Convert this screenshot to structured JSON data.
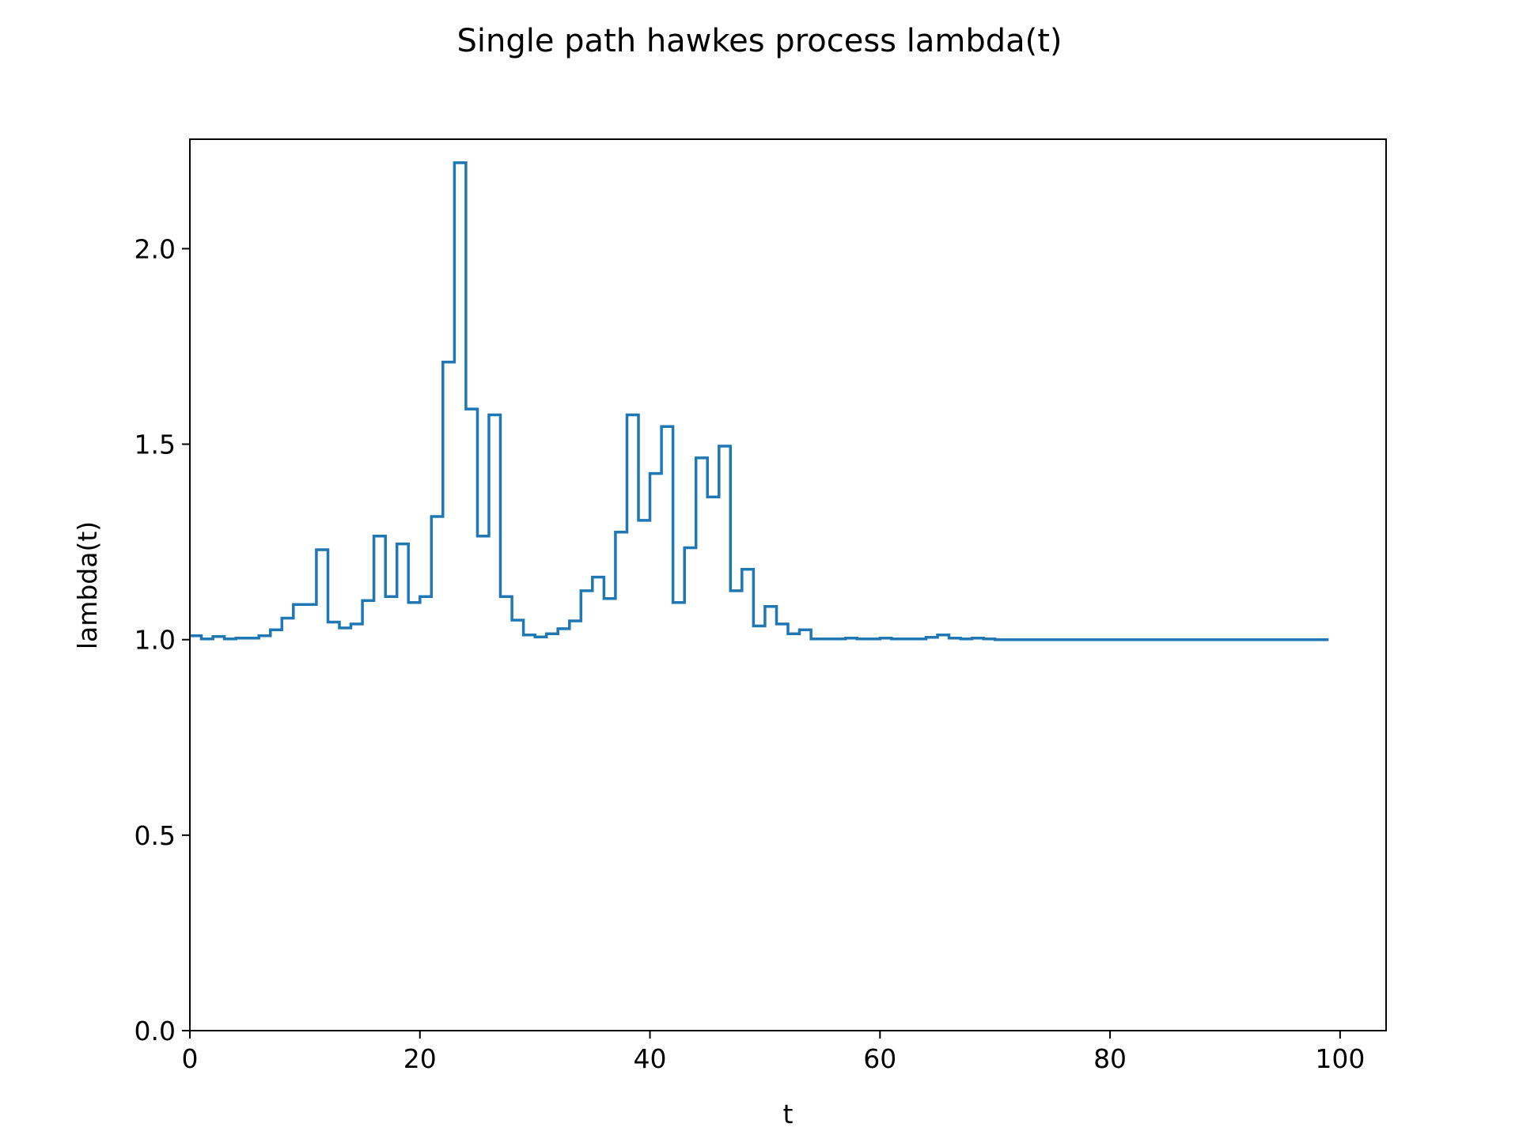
{
  "chart_data": {
    "type": "line",
    "step": "post",
    "title": "Single path hawkes process lambda(t)",
    "xlabel": "t",
    "ylabel": "lambda(t)",
    "xlim": [
      0,
      104
    ],
    "ylim": [
      0,
      2.28
    ],
    "xticks": [
      0,
      20,
      40,
      60,
      80,
      100
    ],
    "xtick_labels": [
      "0",
      "20",
      "40",
      "60",
      "80",
      "100"
    ],
    "yticks": [
      0.0,
      0.5,
      1.0,
      1.5,
      2.0
    ],
    "ytick_labels": [
      "0.0",
      "0.5",
      "1.0",
      "1.5",
      "2.0"
    ],
    "grid": false,
    "line_color": "#1f77b4",
    "series": [
      {
        "x": [
          0,
          1,
          2,
          3,
          4,
          5,
          6,
          7,
          8,
          9,
          10,
          11,
          12,
          13,
          14,
          15,
          16,
          17,
          18,
          19,
          20,
          21,
          22,
          23,
          24,
          25,
          26,
          27,
          28,
          29,
          30,
          31,
          32,
          33,
          34,
          35,
          36,
          37,
          38,
          39,
          40,
          41,
          42,
          43,
          44,
          45,
          46,
          47,
          48,
          49,
          50,
          51,
          52,
          53,
          54,
          55,
          56,
          57,
          58,
          59,
          60,
          61,
          62,
          63,
          64,
          65,
          66,
          67,
          68,
          69,
          70,
          71,
          72,
          73,
          74,
          75,
          76,
          77,
          78,
          79,
          80,
          81,
          82,
          83,
          84,
          85,
          86,
          87,
          88,
          89,
          90,
          91,
          92,
          93,
          94,
          95,
          96,
          97,
          98,
          99
        ],
        "values": [
          1.01,
          1.002,
          1.008,
          1.002,
          1.004,
          1.004,
          1.01,
          1.025,
          1.055,
          1.09,
          1.09,
          1.23,
          1.045,
          1.03,
          1.04,
          1.1,
          1.265,
          1.11,
          1.245,
          1.095,
          1.11,
          1.315,
          1.71,
          2.22,
          1.59,
          1.265,
          1.575,
          1.11,
          1.05,
          1.012,
          1.007,
          1.015,
          1.028,
          1.048,
          1.125,
          1.16,
          1.105,
          1.275,
          1.575,
          1.305,
          1.425,
          1.545,
          1.095,
          1.235,
          1.465,
          1.365,
          1.495,
          1.125,
          1.18,
          1.035,
          1.085,
          1.04,
          1.015,
          1.025,
          1.002,
          1.002,
          1.002,
          1.004,
          1.002,
          1.002,
          1.004,
          1.002,
          1.002,
          1.002,
          1.006,
          1.012,
          1.004,
          1.002,
          1.004,
          1.002,
          1.0,
          1.0,
          1.0,
          1.0,
          1.0,
          1.0,
          1.0,
          1.0,
          1.0,
          1.0,
          1.0,
          1.0,
          1.0,
          1.0,
          1.0,
          1.0,
          1.0,
          1.0,
          1.0,
          1.0,
          1.0,
          1.0,
          1.0,
          1.0,
          1.0,
          1.0,
          1.0,
          1.0,
          1.0,
          1.0
        ]
      }
    ]
  }
}
